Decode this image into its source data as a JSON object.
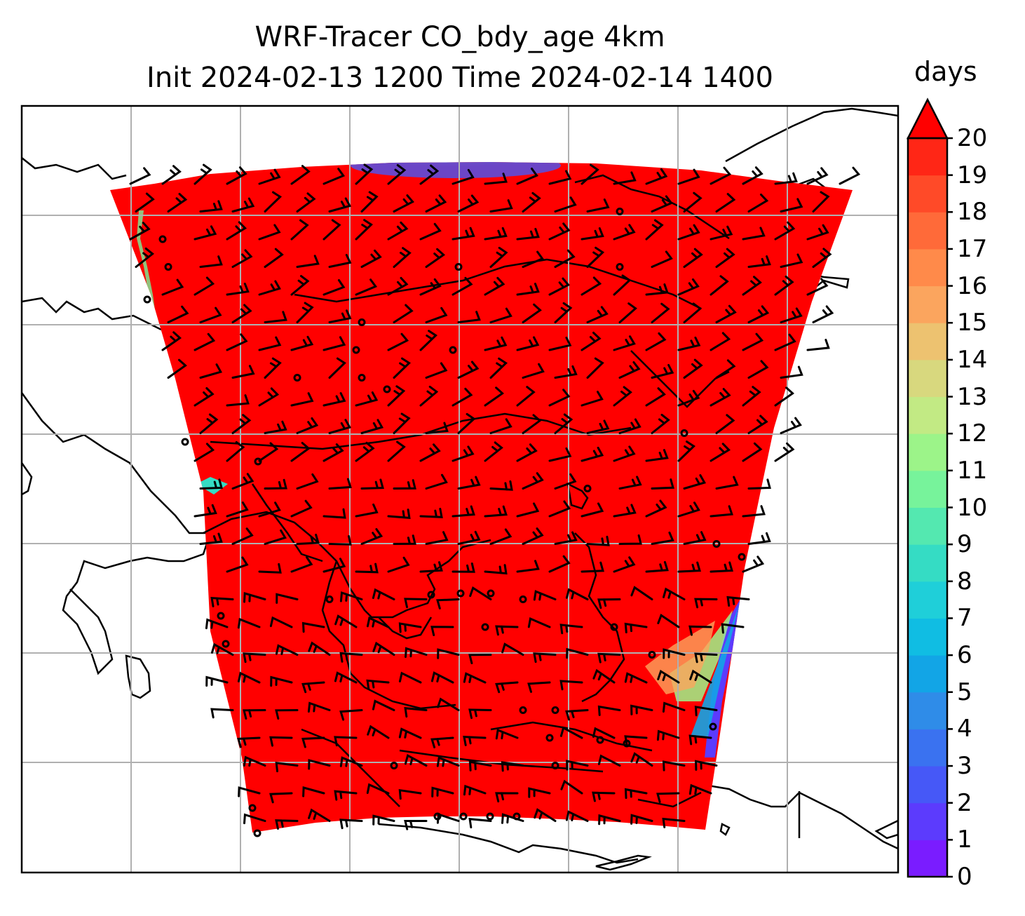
{
  "title": {
    "line1": "WRF-Tracer CO_bdy_age 4km",
    "line2": "Init 2024-02-13 1200 Time 2024-02-14 1400"
  },
  "map": {
    "variable": "CO_bdy_age",
    "resolution": "4km",
    "init_time": "2024-02-13 1200",
    "valid_time": "2024-02-14 1400",
    "overlays": [
      "coastlines",
      "country borders",
      "wind barbs",
      "lat/lon grid"
    ],
    "background_color": "#ffffff",
    "dominant_field_color": "#ff0000"
  },
  "colorbar": {
    "unit_label": "days",
    "ticks": [
      "0",
      "1",
      "2",
      "3",
      "4",
      "5",
      "6",
      "7",
      "8",
      "9",
      "10",
      "11",
      "12",
      "13",
      "14",
      "15",
      "16",
      "17",
      "18",
      "19",
      "20"
    ],
    "extend": "max",
    "colors": [
      "#7a1cff",
      "#5c3bfd",
      "#4658f7",
      "#3a72f0",
      "#2f8ce8",
      "#12a5e6",
      "#10bde3",
      "#1fcfd9",
      "#35dcc4",
      "#54e8b0",
      "#77f39b",
      "#9cf489",
      "#c2ea84",
      "#d8d87e",
      "#edc270",
      "#fba55e",
      "#ff8a4a",
      "#ff6a39",
      "#ff4a28",
      "#ff2616",
      "#ff0000"
    ]
  }
}
